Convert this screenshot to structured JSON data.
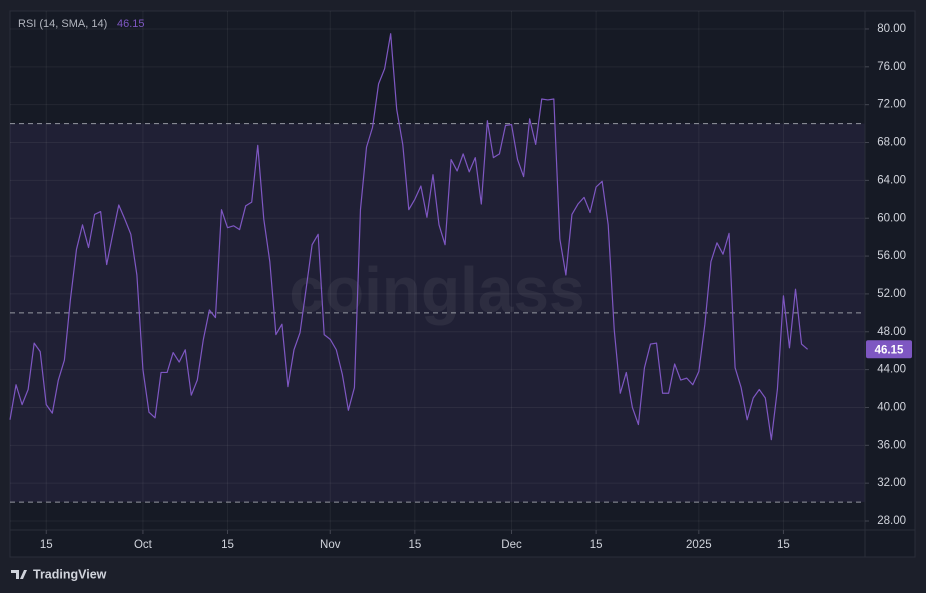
{
  "chart_data": {
    "type": "line",
    "series": [
      {
        "name": "RSI (14, SMA, 14)",
        "color": "#7e57c2",
        "values": [
          38.7,
          42.4,
          40.3,
          41.9,
          46.8,
          45.9,
          40.3,
          39.4,
          42.9,
          45.0,
          51.4,
          56.7,
          59.3,
          56.9,
          60.4,
          60.7,
          55.1,
          58.3,
          61.4,
          59.9,
          58.3,
          54.0,
          44.0,
          39.5,
          38.9,
          43.7,
          43.7,
          45.8,
          44.8,
          46.1,
          41.3,
          42.9,
          47.2,
          50.3,
          49.5,
          60.9,
          59.0,
          59.2,
          58.8,
          61.3,
          61.7,
          67.7,
          59.9,
          55.4,
          47.7,
          48.8,
          42.2,
          46.1,
          47.9,
          52.5,
          57.2,
          58.3,
          47.7,
          47.2,
          46.1,
          43.5,
          39.7,
          42.1,
          60.9,
          67.5,
          69.6,
          74.2,
          75.8,
          79.5,
          71.5,
          67.8,
          60.9,
          62.0,
          63.4,
          60.1,
          64.6,
          59.3,
          57.2,
          66.2,
          65.0,
          66.8,
          64.9,
          66.4,
          61.5,
          70.3,
          66.4,
          66.8,
          69.8,
          69.9,
          66.2,
          64.4,
          70.5,
          67.8,
          72.6,
          72.5,
          72.6,
          57.8,
          54.0,
          60.4,
          61.5,
          62.2,
          60.6,
          63.3,
          63.9,
          59.3,
          48.2,
          41.5,
          43.7,
          40.0,
          38.2,
          44.2,
          46.7,
          46.8,
          41.5,
          41.5,
          44.6,
          42.9,
          43.1,
          42.4,
          43.8,
          48.8,
          55.4,
          57.4,
          56.2,
          58.4,
          44.2,
          42.1,
          38.7,
          41.0,
          41.9,
          41.0,
          36.6,
          41.9,
          51.8,
          46.3,
          52.5,
          46.7,
          46.15
        ]
      }
    ],
    "xlim": [
      0,
      141.5
    ],
    "xticks": [
      {
        "value": 6,
        "label": "15"
      },
      {
        "value": 22,
        "label": "Oct"
      },
      {
        "value": 36,
        "label": "15"
      },
      {
        "value": 53,
        "label": "Nov"
      },
      {
        "value": 67,
        "label": "15"
      },
      {
        "value": 83,
        "label": "Dec"
      },
      {
        "value": 97,
        "label": "15"
      },
      {
        "value": 114,
        "label": "2025"
      },
      {
        "value": 128,
        "label": "15"
      }
    ],
    "ylim": [
      27.05,
      81.9
    ],
    "yticks": [
      {
        "value": 28,
        "label": "28.00"
      },
      {
        "value": 32,
        "label": "32.00"
      },
      {
        "value": 36,
        "label": "36.00"
      },
      {
        "value": 40,
        "label": "40.00"
      },
      {
        "value": 44,
        "label": "44.00"
      },
      {
        "value": 48,
        "label": "48.00"
      },
      {
        "value": 52,
        "label": "52.00"
      },
      {
        "value": 56,
        "label": "56.00"
      },
      {
        "value": 60,
        "label": "60.00"
      },
      {
        "value": 64,
        "label": "64.00"
      },
      {
        "value": 68,
        "label": "68.00"
      },
      {
        "value": 72,
        "label": "72.00"
      },
      {
        "value": 76,
        "label": "76.00"
      },
      {
        "value": 80,
        "label": "80.00"
      }
    ],
    "levels": [
      70,
      50,
      30
    ],
    "grid": true,
    "watermark": "coinglass",
    "brand": "TradingView"
  }
}
